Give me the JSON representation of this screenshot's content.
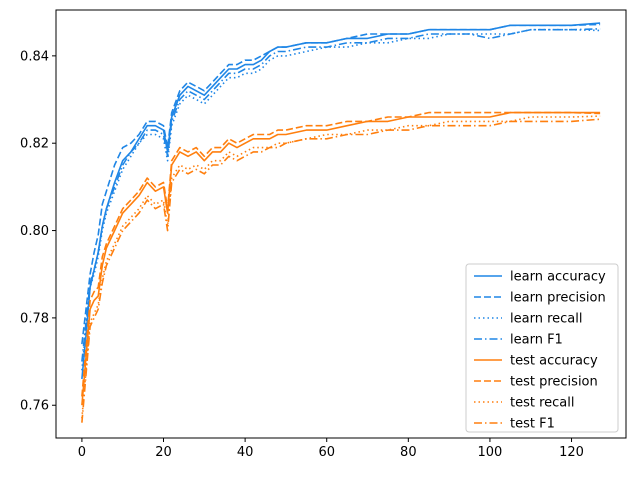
{
  "chart_data": {
    "type": "line",
    "title": "",
    "xlabel": "",
    "ylabel": "",
    "xlim": [
      -6.35,
      133.35
    ],
    "ylim": [
      0.7525,
      0.8505
    ],
    "x_ticks": [
      "0",
      "20",
      "40",
      "60",
      "80",
      "100",
      "120"
    ],
    "y_ticks": [
      "0.76",
      "0.78",
      "0.80",
      "0.82",
      "0.84"
    ],
    "grid": false,
    "legend_position": "lower-right",
    "colors": {
      "learn": "#1f86e6",
      "test": "#ff7f0e"
    },
    "series": [
      {
        "name": "learn accuracy",
        "group": "learn",
        "dash": "solid",
        "x": [
          0,
          1,
          2,
          3,
          4,
          5,
          6,
          8,
          10,
          12,
          14,
          16,
          18,
          20,
          21,
          22,
          24,
          26,
          28,
          30,
          32,
          34,
          36,
          38,
          40,
          42,
          44,
          46,
          48,
          50,
          55,
          60,
          65,
          70,
          75,
          80,
          85,
          90,
          95,
          100,
          105,
          110,
          115,
          120,
          127
        ],
        "y": [
          0.766,
          0.776,
          0.787,
          0.791,
          0.795,
          0.801,
          0.805,
          0.811,
          0.816,
          0.818,
          0.821,
          0.824,
          0.824,
          0.823,
          0.818,
          0.826,
          0.831,
          0.833,
          0.832,
          0.831,
          0.833,
          0.835,
          0.837,
          0.837,
          0.838,
          0.838,
          0.839,
          0.841,
          0.842,
          0.842,
          0.843,
          0.843,
          0.844,
          0.844,
          0.845,
          0.845,
          0.846,
          0.846,
          0.846,
          0.846,
          0.847,
          0.847,
          0.847,
          0.847,
          0.8475
        ]
      },
      {
        "name": "learn precision",
        "group": "learn",
        "dash": "dashed",
        "x": [
          0,
          1,
          2,
          3,
          4,
          5,
          6,
          8,
          10,
          12,
          14,
          16,
          18,
          20,
          21,
          22,
          24,
          26,
          28,
          30,
          32,
          34,
          36,
          38,
          40,
          42,
          44,
          46,
          48,
          50,
          55,
          60,
          65,
          70,
          75,
          80,
          85,
          90,
          95,
          100,
          105,
          110,
          115,
          120,
          127
        ],
        "y": [
          0.774,
          0.782,
          0.79,
          0.795,
          0.799,
          0.806,
          0.809,
          0.815,
          0.819,
          0.82,
          0.822,
          0.825,
          0.825,
          0.824,
          0.819,
          0.827,
          0.832,
          0.834,
          0.833,
          0.832,
          0.834,
          0.836,
          0.838,
          0.838,
          0.839,
          0.839,
          0.84,
          0.841,
          0.842,
          0.842,
          0.843,
          0.843,
          0.844,
          0.845,
          0.845,
          0.845,
          0.846,
          0.846,
          0.846,
          0.846,
          0.847,
          0.847,
          0.847,
          0.847,
          0.8472
        ]
      },
      {
        "name": "learn recall",
        "group": "learn",
        "dash": "dotted",
        "x": [
          0,
          1,
          2,
          3,
          4,
          5,
          6,
          8,
          10,
          12,
          14,
          16,
          18,
          20,
          21,
          22,
          24,
          26,
          28,
          30,
          32,
          34,
          36,
          38,
          40,
          42,
          44,
          46,
          48,
          50,
          55,
          60,
          65,
          70,
          75,
          80,
          85,
          90,
          95,
          100,
          105,
          110,
          115,
          120,
          127
        ],
        "y": [
          0.768,
          0.778,
          0.787,
          0.79,
          0.794,
          0.8,
          0.804,
          0.809,
          0.814,
          0.817,
          0.82,
          0.822,
          0.822,
          0.821,
          0.816,
          0.824,
          0.829,
          0.831,
          0.83,
          0.829,
          0.831,
          0.833,
          0.835,
          0.835,
          0.836,
          0.836,
          0.837,
          0.839,
          0.84,
          0.84,
          0.841,
          0.842,
          0.842,
          0.843,
          0.843,
          0.844,
          0.844,
          0.845,
          0.845,
          0.845,
          0.845,
          0.846,
          0.846,
          0.846,
          0.8458
        ]
      },
      {
        "name": "learn F1",
        "group": "learn",
        "dash": "dashdot",
        "x": [
          0,
          1,
          2,
          3,
          4,
          5,
          6,
          8,
          10,
          12,
          14,
          16,
          18,
          20,
          21,
          22,
          24,
          26,
          28,
          30,
          32,
          34,
          36,
          38,
          40,
          42,
          44,
          46,
          48,
          50,
          55,
          60,
          65,
          70,
          75,
          80,
          85,
          90,
          95,
          100,
          105,
          110,
          115,
          120,
          127
        ],
        "y": [
          0.77,
          0.779,
          0.788,
          0.791,
          0.795,
          0.801,
          0.805,
          0.81,
          0.815,
          0.818,
          0.82,
          0.823,
          0.823,
          0.822,
          0.817,
          0.825,
          0.83,
          0.832,
          0.831,
          0.83,
          0.832,
          0.834,
          0.836,
          0.836,
          0.837,
          0.837,
          0.838,
          0.84,
          0.841,
          0.841,
          0.842,
          0.842,
          0.843,
          0.843,
          0.844,
          0.844,
          0.845,
          0.845,
          0.845,
          0.844,
          0.845,
          0.846,
          0.846,
          0.846,
          0.8462
        ]
      },
      {
        "name": "test accuracy",
        "group": "test",
        "dash": "solid",
        "x": [
          0,
          1,
          2,
          3,
          4,
          5,
          6,
          8,
          10,
          12,
          14,
          16,
          18,
          20,
          21,
          22,
          24,
          26,
          28,
          30,
          32,
          34,
          36,
          38,
          40,
          42,
          44,
          46,
          48,
          50,
          55,
          60,
          65,
          70,
          75,
          80,
          85,
          90,
          95,
          100,
          105,
          110,
          115,
          120,
          127
        ],
        "y": [
          0.76,
          0.771,
          0.782,
          0.784,
          0.785,
          0.792,
          0.796,
          0.8,
          0.804,
          0.806,
          0.808,
          0.811,
          0.809,
          0.81,
          0.804,
          0.815,
          0.818,
          0.817,
          0.818,
          0.816,
          0.818,
          0.818,
          0.82,
          0.819,
          0.82,
          0.821,
          0.821,
          0.821,
          0.822,
          0.822,
          0.823,
          0.823,
          0.824,
          0.825,
          0.825,
          0.826,
          0.826,
          0.826,
          0.826,
          0.826,
          0.827,
          0.827,
          0.827,
          0.827,
          0.827
        ]
      },
      {
        "name": "test precision",
        "group": "test",
        "dash": "dashed",
        "x": [
          0,
          1,
          2,
          3,
          4,
          5,
          6,
          8,
          10,
          12,
          14,
          16,
          18,
          20,
          21,
          22,
          24,
          26,
          28,
          30,
          32,
          34,
          36,
          38,
          40,
          42,
          44,
          46,
          48,
          50,
          55,
          60,
          65,
          70,
          75,
          80,
          85,
          90,
          95,
          100,
          105,
          110,
          115,
          120,
          127
        ],
        "y": [
          0.762,
          0.773,
          0.784,
          0.786,
          0.787,
          0.794,
          0.797,
          0.801,
          0.805,
          0.807,
          0.809,
          0.812,
          0.81,
          0.811,
          0.805,
          0.816,
          0.819,
          0.818,
          0.819,
          0.817,
          0.819,
          0.819,
          0.821,
          0.82,
          0.821,
          0.822,
          0.822,
          0.822,
          0.823,
          0.823,
          0.824,
          0.824,
          0.825,
          0.825,
          0.826,
          0.826,
          0.827,
          0.827,
          0.827,
          0.827,
          0.827,
          0.827,
          0.827,
          0.827,
          0.8268
        ]
      },
      {
        "name": "test recall",
        "group": "test",
        "dash": "dotted",
        "x": [
          0,
          1,
          2,
          3,
          4,
          5,
          6,
          8,
          10,
          12,
          14,
          16,
          18,
          20,
          21,
          22,
          24,
          26,
          28,
          30,
          32,
          34,
          36,
          38,
          40,
          42,
          44,
          46,
          48,
          50,
          55,
          60,
          65,
          70,
          75,
          80,
          85,
          90,
          95,
          100,
          105,
          110,
          115,
          120,
          127
        ],
        "y": [
          0.757,
          0.768,
          0.779,
          0.781,
          0.783,
          0.789,
          0.793,
          0.797,
          0.801,
          0.803,
          0.805,
          0.808,
          0.806,
          0.807,
          0.801,
          0.812,
          0.815,
          0.814,
          0.815,
          0.814,
          0.816,
          0.816,
          0.818,
          0.817,
          0.818,
          0.819,
          0.819,
          0.819,
          0.82,
          0.82,
          0.821,
          0.822,
          0.822,
          0.823,
          0.823,
          0.824,
          0.824,
          0.825,
          0.825,
          0.825,
          0.825,
          0.826,
          0.826,
          0.826,
          0.8262
        ]
      },
      {
        "name": "test F1",
        "group": "test",
        "dash": "dashdot",
        "x": [
          0,
          1,
          2,
          3,
          4,
          5,
          6,
          8,
          10,
          12,
          14,
          16,
          18,
          20,
          21,
          22,
          24,
          26,
          28,
          30,
          32,
          34,
          36,
          38,
          40,
          42,
          44,
          46,
          48,
          50,
          55,
          60,
          65,
          70,
          75,
          80,
          85,
          90,
          95,
          100,
          105,
          110,
          115,
          120,
          127
        ],
        "y": [
          0.756,
          0.767,
          0.778,
          0.78,
          0.782,
          0.788,
          0.792,
          0.796,
          0.8,
          0.802,
          0.804,
          0.807,
          0.805,
          0.806,
          0.8,
          0.811,
          0.814,
          0.813,
          0.814,
          0.813,
          0.815,
          0.815,
          0.817,
          0.816,
          0.817,
          0.818,
          0.818,
          0.819,
          0.819,
          0.82,
          0.821,
          0.821,
          0.822,
          0.822,
          0.823,
          0.823,
          0.824,
          0.824,
          0.824,
          0.824,
          0.825,
          0.825,
          0.825,
          0.825,
          0.8255
        ]
      }
    ]
  }
}
